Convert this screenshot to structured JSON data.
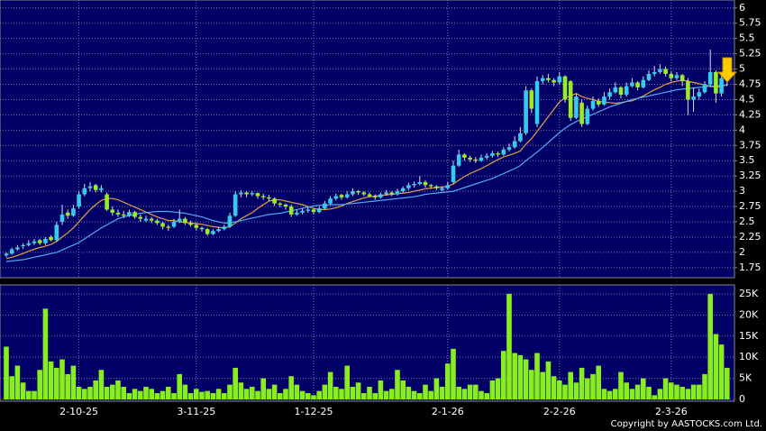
{
  "chart_data": {
    "type": "candlestick",
    "credit": "Copyright by AASTOCKS.com Ltd.",
    "categories": [
      null,
      null,
      null,
      null,
      null,
      null,
      null,
      null,
      null,
      null,
      null,
      null,
      null,
      "2-10-25",
      null,
      null,
      null,
      null,
      null,
      null,
      null,
      null,
      null,
      null,
      null,
      null,
      null,
      null,
      null,
      null,
      null,
      null,
      null,
      null,
      "3-11-25",
      null,
      null,
      null,
      null,
      null,
      null,
      null,
      null,
      null,
      null,
      null,
      null,
      null,
      null,
      null,
      null,
      null,
      null,
      null,
      null,
      "1-12-25",
      null,
      null,
      null,
      null,
      null,
      null,
      null,
      null,
      null,
      null,
      null,
      null,
      null,
      null,
      null,
      null,
      null,
      null,
      null,
      null,
      null,
      null,
      null,
      "2-1-26",
      null,
      null,
      null,
      null,
      null,
      null,
      null,
      null,
      null,
      null,
      null,
      null,
      null,
      null,
      null,
      null,
      null,
      null,
      null,
      "2-2-26",
      null,
      null,
      null,
      null,
      null,
      null,
      null,
      null,
      null,
      null,
      null,
      null,
      null,
      null,
      null,
      null,
      null,
      null,
      null,
      "2-3-26",
      null,
      null,
      null,
      null,
      null,
      null,
      null,
      null,
      null,
      null
    ],
    "ohlc": [
      [
        1.95,
        2.0,
        1.92,
        1.98
      ],
      [
        1.98,
        2.08,
        1.96,
        2.05
      ],
      [
        2.05,
        2.12,
        2.03,
        2.08
      ],
      [
        2.1,
        2.15,
        2.06,
        2.12
      ],
      [
        2.12,
        2.2,
        2.1,
        2.15
      ],
      [
        2.15,
        2.22,
        2.12,
        2.18
      ],
      [
        2.2,
        2.22,
        2.12,
        2.15
      ],
      [
        2.15,
        2.25,
        2.12,
        2.22
      ],
      [
        2.25,
        2.28,
        2.18,
        2.2
      ],
      [
        2.2,
        2.5,
        2.18,
        2.45
      ],
      [
        2.5,
        2.78,
        2.45,
        2.62
      ],
      [
        2.65,
        2.7,
        2.55,
        2.6
      ],
      [
        2.6,
        2.78,
        2.58,
        2.72
      ],
      [
        2.75,
        3.0,
        2.72,
        2.95
      ],
      [
        2.95,
        3.12,
        2.92,
        3.05
      ],
      [
        3.05,
        3.15,
        3.0,
        3.08
      ],
      [
        3.1,
        3.12,
        2.98,
        3.02
      ],
      [
        3.02,
        3.1,
        2.98,
        3.05
      ],
      [
        2.95,
        2.98,
        2.68,
        2.7
      ],
      [
        2.7,
        2.75,
        2.6,
        2.65
      ],
      [
        2.65,
        2.7,
        2.58,
        2.62
      ],
      [
        2.62,
        2.68,
        2.56,
        2.6
      ],
      [
        2.6,
        2.7,
        2.58,
        2.66
      ],
      [
        2.66,
        2.68,
        2.55,
        2.58
      ],
      [
        2.58,
        2.62,
        2.5,
        2.55
      ],
      [
        2.52,
        2.6,
        2.5,
        2.55
      ],
      [
        2.55,
        2.58,
        2.48,
        2.52
      ],
      [
        2.52,
        2.55,
        2.45,
        2.48
      ],
      [
        2.48,
        2.5,
        2.38,
        2.42
      ],
      [
        2.42,
        2.45,
        2.35,
        2.4
      ],
      [
        2.42,
        2.55,
        2.4,
        2.5
      ],
      [
        2.5,
        2.7,
        2.48,
        2.55
      ],
      [
        2.55,
        2.58,
        2.45,
        2.48
      ],
      [
        2.48,
        2.52,
        2.42,
        2.45
      ],
      [
        2.45,
        2.48,
        2.36,
        2.4
      ],
      [
        2.4,
        2.42,
        2.34,
        2.38
      ],
      [
        2.38,
        2.4,
        2.27,
        2.3
      ],
      [
        2.3,
        2.38,
        2.28,
        2.35
      ],
      [
        2.35,
        2.42,
        2.33,
        2.38
      ],
      [
        2.38,
        2.45,
        2.36,
        2.42
      ],
      [
        2.42,
        2.65,
        2.4,
        2.6
      ],
      [
        2.6,
        3.0,
        2.58,
        2.95
      ],
      [
        2.95,
        3.02,
        2.9,
        2.98
      ],
      [
        2.98,
        3.0,
        2.9,
        2.95
      ],
      [
        2.95,
        3.0,
        2.92,
        2.97
      ],
      [
        2.97,
        2.98,
        2.88,
        2.92
      ],
      [
        2.92,
        2.96,
        2.86,
        2.9
      ],
      [
        2.9,
        2.94,
        2.84,
        2.88
      ],
      [
        2.88,
        2.9,
        2.76,
        2.8
      ],
      [
        2.8,
        2.82,
        2.74,
        2.78
      ],
      [
        2.78,
        2.8,
        2.7,
        2.75
      ],
      [
        2.75,
        2.78,
        2.58,
        2.62
      ],
      [
        2.62,
        2.7,
        2.6,
        2.65
      ],
      [
        2.65,
        2.72,
        2.62,
        2.68
      ],
      [
        2.68,
        2.74,
        2.65,
        2.7
      ],
      [
        2.7,
        2.72,
        2.62,
        2.66
      ],
      [
        2.66,
        2.75,
        2.64,
        2.72
      ],
      [
        2.72,
        2.84,
        2.7,
        2.8
      ],
      [
        2.8,
        2.92,
        2.78,
        2.88
      ],
      [
        2.88,
        2.96,
        2.85,
        2.92
      ],
      [
        2.94,
        2.96,
        2.86,
        2.9
      ],
      [
        2.9,
        3.0,
        2.88,
        2.95
      ],
      [
        2.95,
        3.05,
        2.92,
        3.0
      ],
      [
        3.0,
        3.02,
        2.94,
        2.98
      ],
      [
        2.98,
        3.0,
        2.92,
        2.95
      ],
      [
        2.95,
        2.98,
        2.9,
        2.92
      ],
      [
        2.92,
        2.95,
        2.86,
        2.9
      ],
      [
        2.9,
        2.98,
        2.88,
        2.95
      ],
      [
        2.95,
        3.02,
        2.93,
        2.98
      ],
      [
        2.98,
        3.0,
        2.92,
        2.95
      ],
      [
        2.95,
        3.04,
        2.93,
        3.0
      ],
      [
        3.0,
        3.08,
        2.98,
        3.05
      ],
      [
        3.05,
        3.14,
        3.02,
        3.1
      ],
      [
        3.1,
        3.16,
        3.06,
        3.12
      ],
      [
        3.12,
        3.25,
        3.1,
        3.15
      ],
      [
        3.15,
        3.18,
        3.06,
        3.1
      ],
      [
        3.1,
        3.12,
        3.04,
        3.08
      ],
      [
        3.08,
        3.1,
        3.02,
        3.05
      ],
      [
        3.02,
        3.08,
        3.0,
        3.05
      ],
      [
        3.05,
        3.15,
        3.03,
        3.1
      ],
      [
        3.15,
        3.5,
        3.12,
        3.42
      ],
      [
        3.42,
        3.68,
        3.4,
        3.6
      ],
      [
        3.6,
        3.62,
        3.5,
        3.55
      ],
      [
        3.55,
        3.58,
        3.48,
        3.52
      ],
      [
        3.52,
        3.56,
        3.46,
        3.5
      ],
      [
        3.5,
        3.6,
        3.48,
        3.55
      ],
      [
        3.55,
        3.62,
        3.52,
        3.58
      ],
      [
        3.58,
        3.66,
        3.55,
        3.62
      ],
      [
        3.62,
        3.65,
        3.56,
        3.6
      ],
      [
        3.6,
        3.72,
        3.58,
        3.68
      ],
      [
        3.68,
        3.78,
        3.65,
        3.72
      ],
      [
        3.72,
        3.9,
        3.7,
        3.82
      ],
      [
        3.82,
        4.05,
        3.8,
        3.95
      ],
      [
        3.95,
        4.72,
        3.92,
        4.65
      ],
      [
        4.65,
        4.68,
        4.28,
        4.35
      ],
      [
        4.1,
        4.88,
        4.05,
        4.8
      ],
      [
        4.8,
        4.9,
        4.75,
        4.85
      ],
      [
        4.85,
        4.92,
        4.78,
        4.82
      ],
      [
        4.82,
        4.85,
        4.72,
        4.78
      ],
      [
        4.78,
        4.95,
        4.75,
        4.88
      ],
      [
        4.88,
        4.9,
        4.45,
        4.5
      ],
      [
        4.8,
        4.82,
        4.15,
        4.2
      ],
      [
        4.2,
        4.6,
        4.18,
        4.55
      ],
      [
        4.45,
        4.5,
        4.05,
        4.1
      ],
      [
        4.1,
        4.4,
        4.08,
        4.35
      ],
      [
        4.35,
        4.55,
        4.32,
        4.48
      ],
      [
        4.48,
        4.52,
        4.38,
        4.42
      ],
      [
        4.42,
        4.62,
        4.4,
        4.55
      ],
      [
        4.55,
        4.68,
        4.5,
        4.62
      ],
      [
        4.62,
        4.78,
        4.6,
        4.7
      ],
      [
        4.7,
        4.72,
        4.52,
        4.58
      ],
      [
        4.58,
        4.78,
        4.55,
        4.72
      ],
      [
        4.72,
        4.85,
        4.7,
        4.78
      ],
      [
        4.78,
        4.8,
        4.65,
        4.7
      ],
      [
        4.7,
        4.88,
        4.68,
        4.82
      ],
      [
        4.82,
        4.98,
        4.8,
        4.92
      ],
      [
        4.92,
        5.05,
        4.88,
        4.95
      ],
      [
        4.95,
        5.08,
        4.92,
        5.0
      ],
      [
        5.0,
        5.04,
        4.88,
        4.92
      ],
      [
        4.92,
        4.96,
        4.8,
        4.85
      ],
      [
        4.85,
        4.95,
        4.82,
        4.9
      ],
      [
        4.9,
        4.92,
        4.72,
        4.8
      ],
      [
        4.8,
        4.85,
        4.25,
        4.5
      ],
      [
        4.5,
        4.7,
        4.3,
        4.55
      ],
      [
        4.55,
        4.68,
        4.5,
        4.62
      ],
      [
        4.62,
        4.8,
        4.6,
        4.75
      ],
      [
        4.75,
        5.32,
        4.7,
        4.95
      ],
      [
        4.95,
        4.98,
        4.45,
        4.6
      ],
      [
        4.6,
        4.92,
        4.55,
        4.85
      ],
      [
        4.85,
        4.98,
        4.72,
        4.88
      ]
    ],
    "up_color": "#33ccee",
    "down_color": "#99ee22",
    "ma": [
      {
        "color": "#e8a040",
        "values": [
          1.9,
          1.92,
          1.95,
          1.98,
          2.02,
          2.05,
          2.08,
          2.1,
          2.13,
          2.18,
          2.25,
          2.32,
          2.4,
          2.5,
          2.6,
          2.7,
          2.78,
          2.85,
          2.88,
          2.88,
          2.86,
          2.82,
          2.78,
          2.74,
          2.7,
          2.66,
          2.62,
          2.58,
          2.55,
          2.52,
          2.52,
          2.5,
          2.49,
          2.48,
          2.47,
          2.46,
          2.44,
          2.42,
          2.41,
          2.4,
          2.42,
          2.48,
          2.55,
          2.6,
          2.65,
          2.72,
          2.78,
          2.84,
          2.86,
          2.86,
          2.84,
          2.82,
          2.8,
          2.78,
          2.75,
          2.72,
          2.7,
          2.7,
          2.71,
          2.73,
          2.76,
          2.8,
          2.83,
          2.86,
          2.89,
          2.91,
          2.92,
          2.93,
          2.94,
          2.95,
          2.96,
          2.97,
          2.98,
          3.0,
          3.02,
          3.04,
          3.05,
          3.06,
          3.07,
          3.08,
          3.12,
          3.18,
          3.24,
          3.29,
          3.33,
          3.37,
          3.42,
          3.47,
          3.52,
          3.56,
          3.59,
          3.62,
          3.66,
          3.77,
          3.86,
          3.98,
          4.1,
          4.22,
          4.34,
          4.46,
          4.53,
          4.56,
          4.6,
          4.55,
          4.52,
          4.5,
          4.47,
          4.46,
          4.45,
          4.44,
          4.45,
          4.47,
          4.48,
          4.52,
          4.56,
          4.61,
          4.66,
          4.7,
          4.75,
          4.78,
          4.8,
          4.82,
          4.8,
          4.78,
          4.76,
          4.74,
          4.72,
          4.7,
          4.72,
          4.74
        ]
      },
      {
        "color": "#55aaee",
        "values": [
          1.85,
          1.86,
          1.87,
          1.88,
          1.9,
          1.92,
          1.94,
          1.96,
          1.98,
          2.0,
          2.04,
          2.08,
          2.12,
          2.16,
          2.22,
          2.28,
          2.34,
          2.4,
          2.45,
          2.5,
          2.55,
          2.58,
          2.6,
          2.62,
          2.64,
          2.65,
          2.66,
          2.67,
          2.67,
          2.67,
          2.66,
          2.65,
          2.64,
          2.62,
          2.6,
          2.58,
          2.55,
          2.52,
          2.5,
          2.48,
          2.48,
          2.5,
          2.52,
          2.54,
          2.56,
          2.58,
          2.6,
          2.62,
          2.63,
          2.64,
          2.66,
          2.68,
          2.7,
          2.72,
          2.74,
          2.76,
          2.77,
          2.77,
          2.78,
          2.78,
          2.78,
          2.79,
          2.8,
          2.81,
          2.82,
          2.83,
          2.84,
          2.85,
          2.86,
          2.87,
          2.88,
          2.89,
          2.9,
          2.91,
          2.93,
          2.95,
          2.96,
          2.97,
          2.98,
          2.99,
          3.0,
          3.03,
          3.06,
          3.09,
          3.12,
          3.15,
          3.18,
          3.21,
          3.25,
          3.29,
          3.33,
          3.37,
          3.42,
          3.5,
          3.57,
          3.64,
          3.72,
          3.8,
          3.88,
          3.96,
          4.03,
          4.09,
          4.14,
          4.18,
          4.22,
          4.26,
          4.3,
          4.34,
          4.38,
          4.41,
          4.44,
          4.47,
          4.5,
          4.52,
          4.54,
          4.56,
          4.58,
          4.6,
          4.62,
          4.64,
          4.66,
          4.67,
          4.68,
          4.69,
          4.7,
          4.71,
          4.72,
          4.72,
          4.73,
          4.74
        ]
      }
    ],
    "ylim": [
      1.6,
      6.1
    ],
    "yticks": [
      1.75,
      2,
      2.25,
      2.5,
      2.75,
      3,
      3.25,
      3.5,
      3.75,
      4,
      4.25,
      4.5,
      4.75,
      5,
      5.25,
      5.5,
      5.75,
      6
    ],
    "grid": true,
    "volume": {
      "color": "#88ee22",
      "values": [
        12500,
        5500,
        8000,
        4000,
        2000,
        2000,
        7000,
        21500,
        9000,
        7500,
        9500,
        6000,
        8000,
        3000,
        2500,
        3000,
        4500,
        7000,
        3000,
        3500,
        4500,
        3000,
        1500,
        2500,
        2000,
        3000,
        2500,
        1500,
        2000,
        3000,
        1500,
        6000,
        3500,
        1500,
        2500,
        1800,
        2000,
        1500,
        2500,
        1500,
        3500,
        7500,
        4000,
        2500,
        3000,
        2000,
        5000,
        2500,
        3500,
        1500,
        2500,
        5500,
        3500,
        2000,
        1500,
        1000,
        2000,
        3500,
        6500,
        3000,
        2500,
        8000,
        3000,
        4000,
        1500,
        3000,
        1500,
        4500,
        2000,
        2500,
        7000,
        4500,
        3000,
        2000,
        1500,
        3500,
        2000,
        5000,
        3000,
        8500,
        12000,
        3000,
        2500,
        3500,
        3500,
        2000,
        1500,
        4500,
        5000,
        11500,
        25000,
        11000,
        10500,
        9500,
        7000,
        11000,
        6500,
        9000,
        5500,
        4500,
        3500,
        6500,
        4000,
        7500,
        5000,
        6000,
        8000,
        2500,
        2000,
        2500,
        6500,
        4000,
        2500,
        3500,
        5000,
        3000,
        1000,
        2500,
        5000,
        4000,
        3500,
        3000,
        2500,
        3500,
        3500,
        6000,
        25000,
        15500,
        13000,
        7500
      ],
      "ylim": [
        0,
        26700
      ],
      "yticks": [
        {
          "value": 0,
          "label": "0"
        },
        {
          "value": 5000,
          "label": "5K"
        },
        {
          "value": 10000,
          "label": "10K"
        },
        {
          "value": 15000,
          "label": "15K"
        },
        {
          "value": 20000,
          "label": "20K"
        },
        {
          "value": 25000,
          "label": "25K"
        }
      ]
    }
  }
}
